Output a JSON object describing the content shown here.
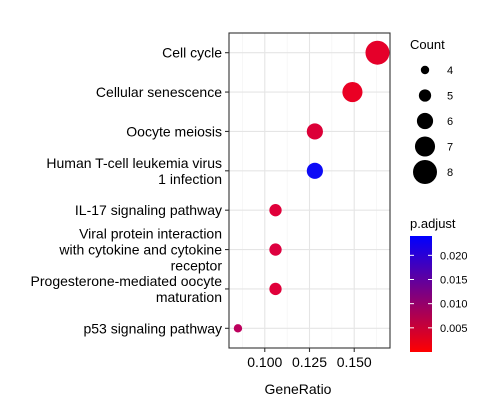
{
  "chart_data": {
    "type": "scatter",
    "title": "",
    "xlabel": "GeneRatio",
    "ylabel": "",
    "xlim": [
      0.08,
      0.17
    ],
    "x_ticks": [
      0.1,
      0.125,
      0.15
    ],
    "x_tick_labels": [
      "0.100",
      "0.125",
      "0.150"
    ],
    "grid": true,
    "legend_position": "right",
    "categories": [
      "Cell cycle",
      "Cellular senescence",
      "Oocyte meiosis",
      "Human T-cell leukemia virus\n1 infection",
      "IL-17 signaling pathway",
      "Viral protein interaction\nwith cytokine and cytokine\nreceptor",
      "Progesterone-mediated oocyte\nmaturation",
      "p53 signaling pathway"
    ],
    "points": [
      {
        "category": "Cell cycle",
        "x": 0.163,
        "count": 8,
        "p_adjust": 0.001,
        "color": "#e5002a"
      },
      {
        "category": "Cellular senescence",
        "x": 0.149,
        "count": 7,
        "p_adjust": 0.0007,
        "color": "#ea0024"
      },
      {
        "category": "Oocyte meiosis",
        "x": 0.128,
        "count": 6,
        "p_adjust": 0.003,
        "color": "#dc0037"
      },
      {
        "category": "Human T-cell leukemia virus 1 infection",
        "x": 0.128,
        "count": 6,
        "p_adjust": 0.024,
        "color": "#0d0bf6"
      },
      {
        "category": "IL-17 signaling pathway",
        "x": 0.106,
        "count": 5,
        "p_adjust": 0.0035,
        "color": "#e0003a"
      },
      {
        "category": "Viral protein interaction with cytokine and cytokine receptor",
        "x": 0.106,
        "count": 5,
        "p_adjust": 0.004,
        "color": "#dd003f"
      },
      {
        "category": "Progesterone-mediated oocyte maturation",
        "x": 0.106,
        "count": 5,
        "p_adjust": 0.0035,
        "color": "#e0003a"
      },
      {
        "category": "p53 signaling pathway",
        "x": 0.085,
        "count": 4,
        "p_adjust": 0.008,
        "color": "#bd005d"
      }
    ],
    "size_legend": {
      "title": "Count",
      "entries": [
        {
          "label": "4",
          "count": 4
        },
        {
          "label": "5",
          "count": 5
        },
        {
          "label": "6",
          "count": 6
        },
        {
          "label": "7",
          "count": 7
        },
        {
          "label": "8",
          "count": 8
        }
      ]
    },
    "color_legend": {
      "title": "p.adjust",
      "low_color": "#ff0000",
      "high_color": "#0000ff",
      "range": [
        0.0,
        0.024
      ],
      "ticks": [
        {
          "value": 0.02,
          "label": "0.020"
        },
        {
          "value": 0.015,
          "label": "0.015"
        },
        {
          "value": 0.01,
          "label": "0.010"
        },
        {
          "value": 0.005,
          "label": "0.005"
        }
      ]
    }
  }
}
